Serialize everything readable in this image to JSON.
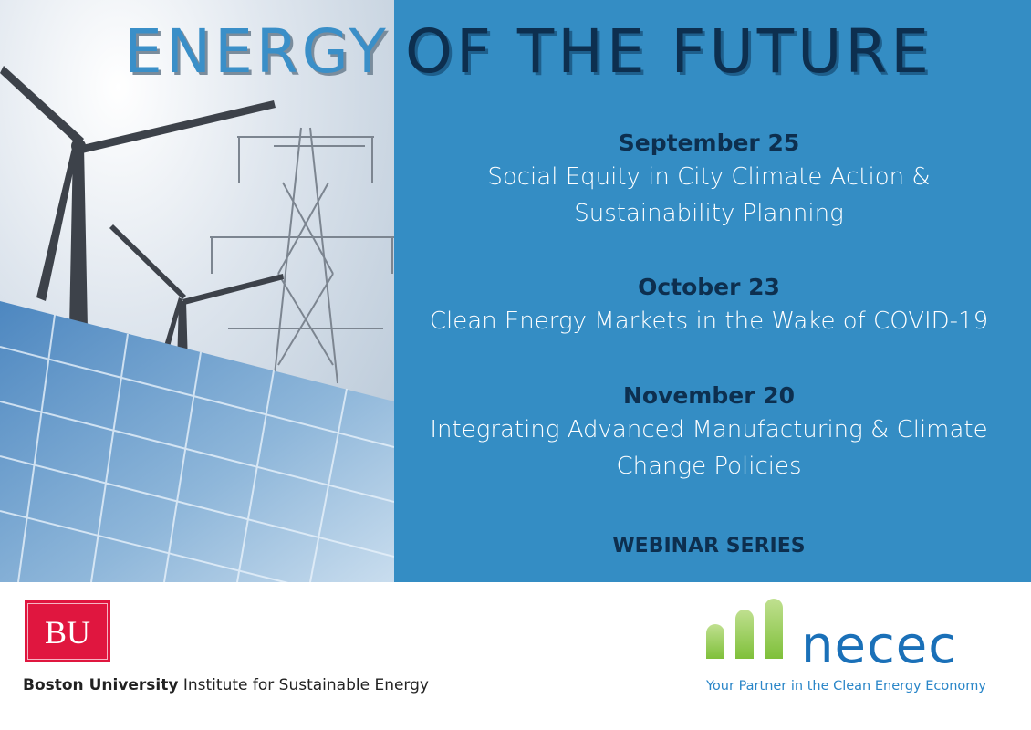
{
  "header": {
    "title_part1": "ENERGY",
    "title_part2": "OF THE FUTURE"
  },
  "events": [
    {
      "date": "September 25",
      "title_lines": [
        "Social Equity in City Climate Action &",
        "Sustainability Planning"
      ]
    },
    {
      "date": "October 23",
      "title_lines": [
        "Clean Energy Markets in the Wake of COVID-19"
      ]
    },
    {
      "date": "November 20",
      "title_lines": [
        "Integrating Advanced Manufacturing & Climate",
        "Change Policies"
      ]
    }
  ],
  "series_label": "WEBINAR SERIES",
  "footer": {
    "bu_logo": "BU",
    "bu_name": "Boston University",
    "bu_institute": "Institute for Sustainable Energy",
    "necec_logo": "necec",
    "necec_tagline": "Your Partner in the Clean Energy Economy"
  },
  "colors": {
    "panel": "#348dc4",
    "title_dark": "#0d2f4f",
    "title_light": "#3a8fc8",
    "bu_red": "#e0163f",
    "necec_green": "#8cc63f",
    "necec_blue": "#1a70b8"
  },
  "images": {
    "photo": "wind turbines, power pylons and solar panel"
  }
}
